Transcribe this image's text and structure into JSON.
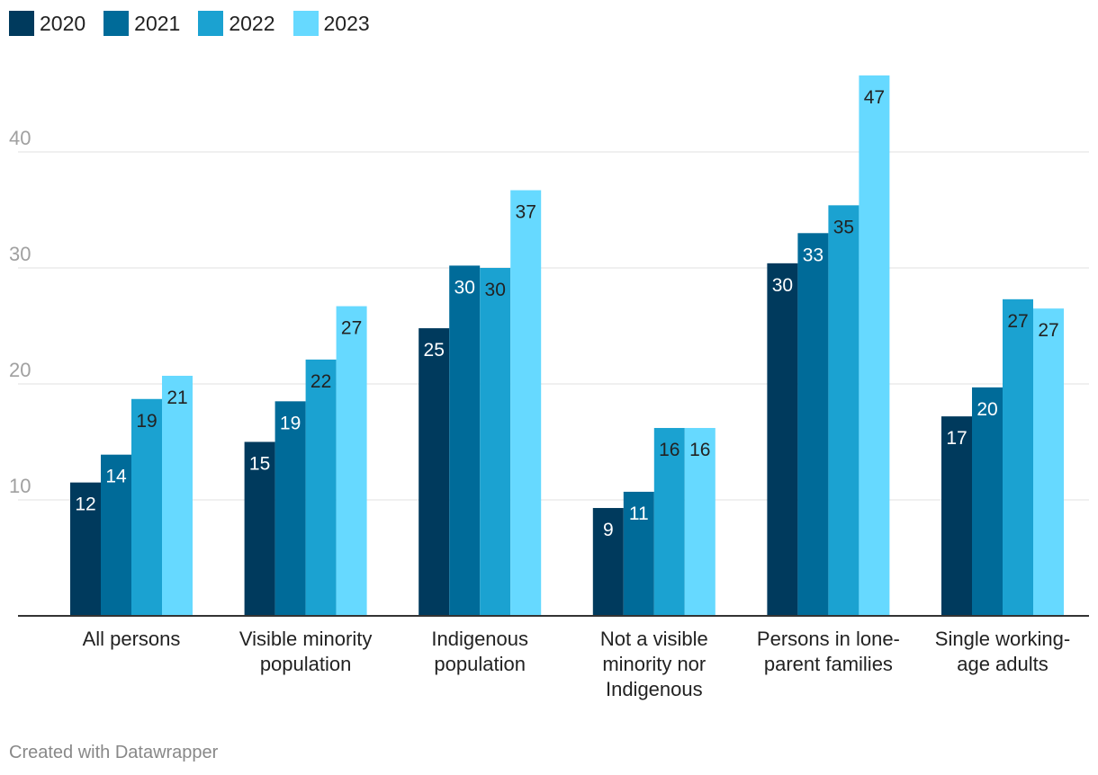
{
  "chart_data": {
    "type": "bar",
    "categories": [
      [
        "All persons"
      ],
      [
        "Visible minority",
        "population"
      ],
      [
        "Indigenous",
        "population"
      ],
      [
        "Not a visible",
        "minority nor",
        "Indigenous"
      ],
      [
        "Persons in lone-",
        "parent families"
      ],
      [
        "Single working-",
        "age adults"
      ]
    ],
    "series": [
      {
        "name": "2020",
        "color": "#003a5d",
        "values": [
          11.5,
          15.0,
          24.8,
          9.3,
          30.4,
          17.2
        ],
        "labels": [
          "12",
          "15",
          "25",
          "9",
          "30",
          "17"
        ]
      },
      {
        "name": "2021",
        "color": "#006b99",
        "values": [
          13.9,
          18.5,
          30.2,
          10.7,
          33.0,
          19.7
        ],
        "labels": [
          "14",
          "19",
          "30",
          "11",
          "33",
          "20"
        ]
      },
      {
        "name": "2022",
        "color": "#1ba2d1",
        "values": [
          18.7,
          22.1,
          30.0,
          16.2,
          35.4,
          27.3
        ],
        "labels": [
          "19",
          "22",
          "30",
          "16",
          "35",
          "27"
        ]
      },
      {
        "name": "2023",
        "color": "#66d9ff",
        "values": [
          20.7,
          26.7,
          36.7,
          16.2,
          46.6,
          26.5
        ],
        "labels": [
          "21",
          "27",
          "37",
          "16",
          "47",
          "27"
        ]
      }
    ],
    "yticks": [
      10,
      20,
      30,
      40
    ],
    "ylim": [
      0,
      47
    ],
    "title": "",
    "xlabel": "",
    "ylabel": ""
  },
  "footer": "Created with Datawrapper"
}
